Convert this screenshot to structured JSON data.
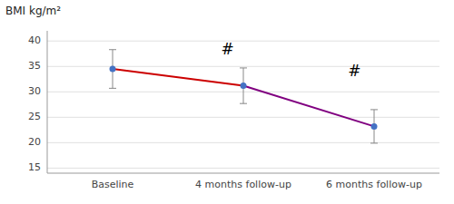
{
  "chart_data": {
    "type": "line",
    "ylabel": "BMI kg/m²",
    "categories": [
      "Baseline",
      "4 months follow-up",
      "6 months follow-up"
    ],
    "values": [
      34.5,
      31.2,
      23.2
    ],
    "error_upper": [
      3.8,
      3.5,
      3.3
    ],
    "error_lower": [
      3.8,
      3.5,
      3.3
    ],
    "colors": [
      "#cc0000",
      "#800080"
    ],
    "color": "#4472c4",
    "annotations": [
      {
        "x": 0.88,
        "y": 38.2,
        "text": "#"
      },
      {
        "x": 1.85,
        "y": 34.0,
        "text": "#"
      }
    ],
    "ylim": [
      14,
      42
    ],
    "yticks": [
      15,
      20,
      25,
      30,
      35,
      40
    ],
    "grid": true
  }
}
